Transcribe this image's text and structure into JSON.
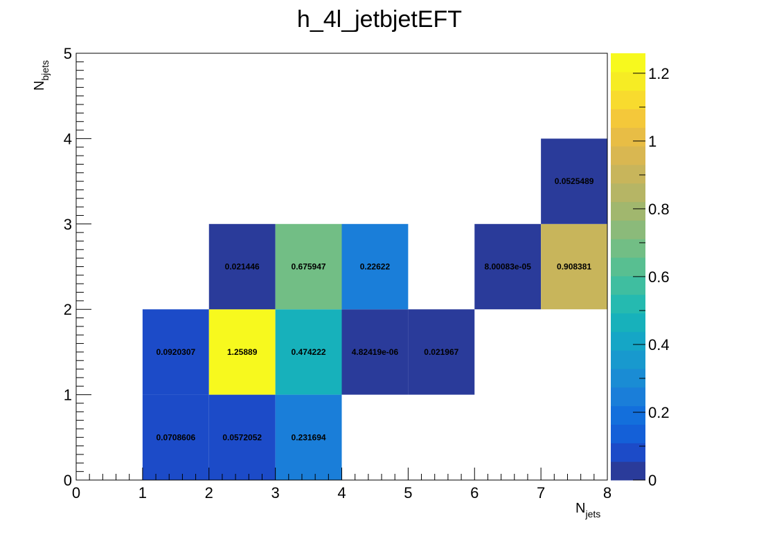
{
  "chart_data": {
    "type": "heatmap",
    "title": "h_4l_jetbjetEFT",
    "xlabel": "N",
    "xlabel_sub": "jets",
    "ylabel": "N",
    "ylabel_sub": "bjets",
    "xlim": [
      0,
      8
    ],
    "ylim": [
      0,
      5
    ],
    "x_ticks": [
      "0",
      "1",
      "2",
      "3",
      "4",
      "5",
      "6",
      "7",
      "8"
    ],
    "y_ticks": [
      "0",
      "1",
      "2",
      "3",
      "4",
      "5"
    ],
    "colorbar": {
      "min": 0,
      "max": 1.25889,
      "ticks": [
        "0",
        "0.2",
        "0.4",
        "0.6",
        "0.8",
        "1",
        "1.2"
      ],
      "tick_values": [
        0,
        0.2,
        0.4,
        0.6,
        0.8,
        1.0,
        1.2
      ],
      "palette": [
        "#2a3b9a",
        "#1c4bc8",
        "#1460d8",
        "#136fdc",
        "#1a7ed9",
        "#1a8cd4",
        "#1899ce",
        "#15a6c6",
        "#17b1bb",
        "#25bab0",
        "#3fbea0",
        "#58bf91",
        "#72be85",
        "#8bba7a",
        "#a1b76e",
        "#b6b565",
        "#c8b55b",
        "#d9b751",
        "#e8bd45",
        "#f4c83a",
        "#f8db2e",
        "#f6ec24",
        "#f7f91e"
      ]
    },
    "cells": [
      {
        "x": 1,
        "y": 0,
        "value": 0.0708606,
        "label": "0.0708606"
      },
      {
        "x": 2,
        "y": 0,
        "value": 0.0572052,
        "label": "0.0572052"
      },
      {
        "x": 3,
        "y": 0,
        "value": 0.231694,
        "label": "0.231694"
      },
      {
        "x": 1,
        "y": 1,
        "value": 0.0920307,
        "label": "0.0920307"
      },
      {
        "x": 2,
        "y": 1,
        "value": 1.25889,
        "label": "1.25889"
      },
      {
        "x": 3,
        "y": 1,
        "value": 0.474222,
        "label": "0.474222"
      },
      {
        "x": 4,
        "y": 1,
        "value": 4.82419e-06,
        "label": "4.82419e-06"
      },
      {
        "x": 5,
        "y": 1,
        "value": 0.021967,
        "label": "0.021967"
      },
      {
        "x": 2,
        "y": 2,
        "value": 0.021446,
        "label": "0.021446"
      },
      {
        "x": 3,
        "y": 2,
        "value": 0.675947,
        "label": "0.675947"
      },
      {
        "x": 4,
        "y": 2,
        "value": 0.22622,
        "label": "0.22622"
      },
      {
        "x": 6,
        "y": 2,
        "value": 8.00083e-05,
        "label": "8.00083e-05"
      },
      {
        "x": 7,
        "y": 2,
        "value": 0.908381,
        "label": "0.908381"
      },
      {
        "x": 7,
        "y": 3,
        "value": 0.0525489,
        "label": "0.0525489"
      }
    ],
    "legend": "colorbar-right",
    "grid": false
  }
}
